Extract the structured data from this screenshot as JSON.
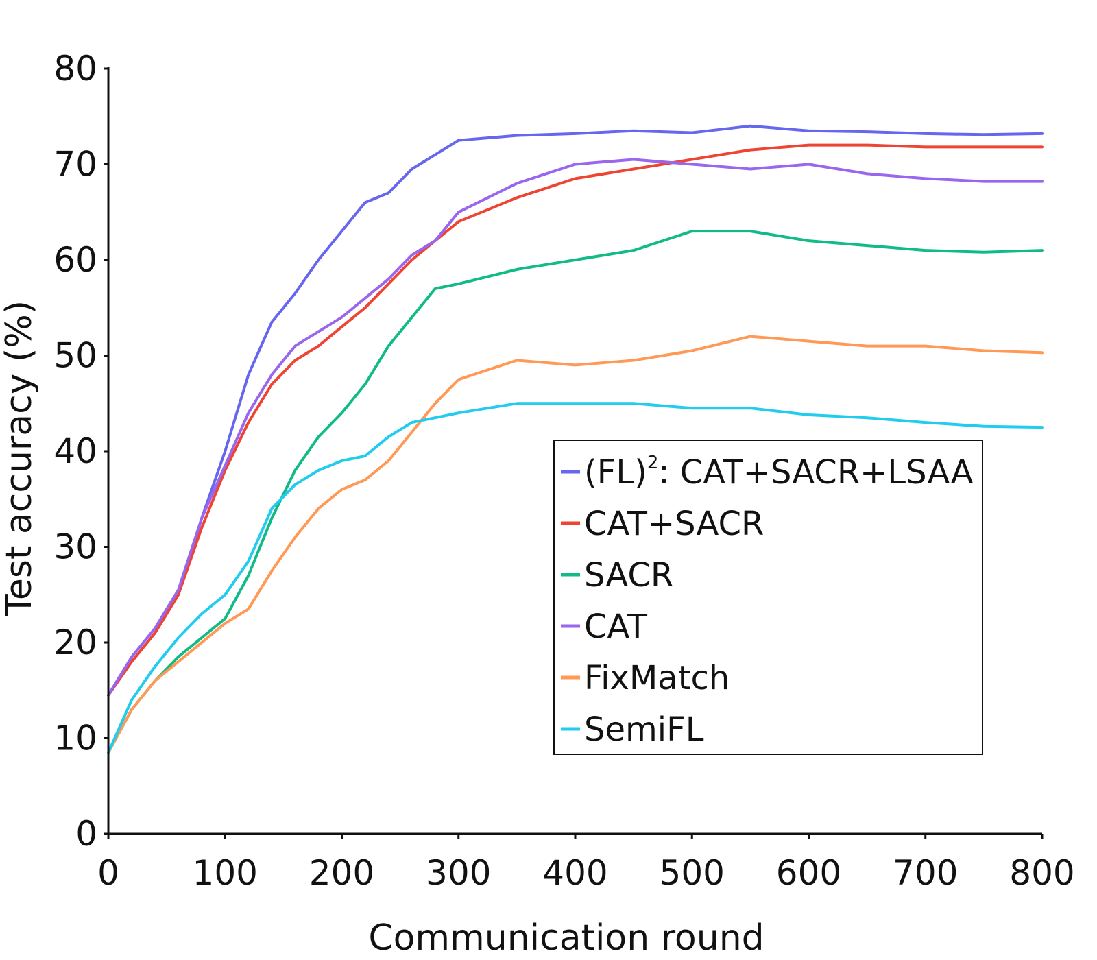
{
  "chart_data": {
    "type": "line",
    "title": "",
    "xlabel": "Communication round",
    "ylabel": "Test accuracy (%)",
    "xlim": [
      0,
      800
    ],
    "ylim": [
      0,
      80
    ],
    "xticks": [
      0,
      100,
      200,
      300,
      400,
      500,
      600,
      700,
      800
    ],
    "yticks": [
      0,
      10,
      20,
      30,
      40,
      50,
      60,
      70,
      80
    ],
    "grid": false,
    "legend_position": "center-right",
    "series": [
      {
        "name": "(FL)²: CAT+SACR+LSAA",
        "legend_main": "(FL)",
        "legend_sup": "2",
        "legend_rest": ": CAT+SACR+LSAA",
        "color": "#6666ee",
        "x": [
          0,
          20,
          40,
          60,
          80,
          100,
          120,
          140,
          160,
          180,
          200,
          220,
          240,
          260,
          280,
          300,
          350,
          400,
          450,
          500,
          550,
          600,
          650,
          700,
          750,
          800
        ],
        "y": [
          14.5,
          18,
          21,
          25,
          33,
          40,
          48,
          53.5,
          56.5,
          60,
          63,
          66,
          67,
          69.5,
          71,
          72.5,
          73,
          73.2,
          73.5,
          73.3,
          74,
          73.5,
          73.4,
          73.2,
          73.1,
          73.2
        ]
      },
      {
        "name": "CAT+SACR",
        "color": "#ee4433",
        "x": [
          0,
          20,
          40,
          60,
          80,
          100,
          120,
          140,
          160,
          180,
          200,
          220,
          240,
          260,
          280,
          300,
          350,
          400,
          450,
          500,
          550,
          600,
          650,
          700,
          750,
          800
        ],
        "y": [
          14.5,
          18,
          21,
          25,
          32,
          38,
          43,
          47,
          49.5,
          51,
          53,
          55,
          57.5,
          60,
          62,
          64,
          66.5,
          68.5,
          69.5,
          70.5,
          71.5,
          72,
          72,
          71.8,
          71.8,
          71.8
        ]
      },
      {
        "name": "SACR",
        "color": "#11bb88",
        "x": [
          0,
          20,
          40,
          60,
          80,
          100,
          120,
          140,
          160,
          180,
          200,
          220,
          240,
          260,
          280,
          300,
          350,
          400,
          450,
          500,
          550,
          600,
          650,
          700,
          750,
          800
        ],
        "y": [
          8.5,
          13,
          16,
          18.5,
          20.5,
          22.5,
          27,
          33,
          38,
          41.5,
          44,
          47,
          51,
          54,
          57,
          57.5,
          59,
          60,
          61,
          63,
          63,
          62,
          61.5,
          61,
          60.8,
          61
        ]
      },
      {
        "name": "CAT",
        "color": "#9966ee",
        "x": [
          0,
          20,
          40,
          60,
          80,
          100,
          120,
          140,
          160,
          180,
          200,
          220,
          240,
          260,
          280,
          300,
          350,
          400,
          450,
          500,
          550,
          600,
          650,
          700,
          750,
          800
        ],
        "y": [
          14.5,
          18.5,
          21.5,
          25.5,
          33,
          38.5,
          44,
          48,
          51,
          52.5,
          54,
          56,
          58,
          60.5,
          62,
          65,
          68,
          70,
          70.5,
          70,
          69.5,
          70,
          69,
          68.5,
          68.2,
          68.2
        ]
      },
      {
        "name": "FixMatch",
        "color": "#ff9955",
        "x": [
          0,
          20,
          40,
          60,
          80,
          100,
          120,
          140,
          160,
          180,
          200,
          220,
          240,
          260,
          280,
          300,
          350,
          400,
          450,
          500,
          550,
          600,
          650,
          700,
          750,
          800
        ],
        "y": [
          8.5,
          13,
          16,
          18,
          20,
          22,
          23.5,
          27.5,
          31,
          34,
          36,
          37,
          39,
          42,
          45,
          47.5,
          49.5,
          49,
          49.5,
          50.5,
          52,
          51.5,
          51,
          51,
          50.5,
          50.3
        ]
      },
      {
        "name": "SemiFL",
        "color": "#22ccee",
        "x": [
          0,
          20,
          40,
          60,
          80,
          100,
          120,
          140,
          160,
          180,
          200,
          220,
          240,
          260,
          280,
          300,
          350,
          400,
          450,
          500,
          550,
          600,
          650,
          700,
          750,
          800
        ],
        "y": [
          8.5,
          14,
          17.5,
          20.5,
          23,
          25,
          28.5,
          34,
          36.5,
          38,
          39,
          39.5,
          41.5,
          43,
          43.5,
          44,
          45,
          45,
          45,
          44.5,
          44.5,
          43.8,
          43.5,
          43,
          42.6,
          42.5
        ]
      }
    ]
  }
}
